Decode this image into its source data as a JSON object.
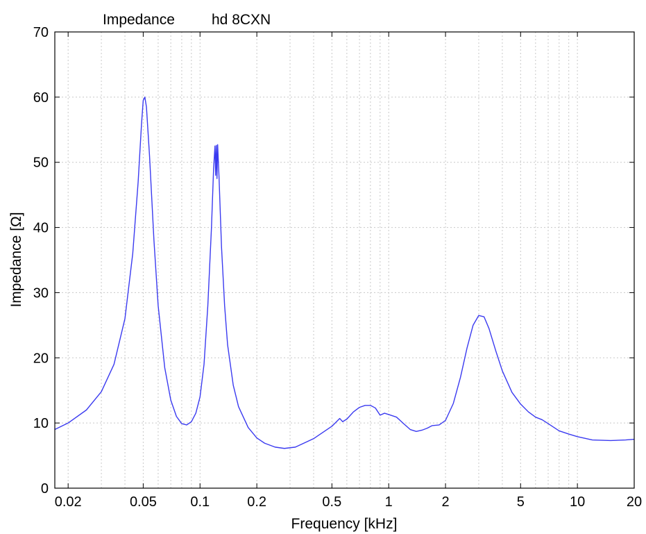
{
  "chart_data": {
    "type": "line",
    "title_left": "Impedance",
    "title_right": "hd 8CXN",
    "xlabel": "Frequency [kHz]",
    "ylabel": "Impedance [Ω]",
    "x_scale": "log",
    "xlim": [
      0.017,
      20
    ],
    "ylim": [
      0,
      70
    ],
    "x_ticks": [
      0.02,
      0.05,
      0.1,
      0.2,
      0.5,
      1,
      2,
      5,
      10,
      20
    ],
    "x_tick_labels": [
      "0.02",
      "0.05",
      "0.1",
      "0.2",
      "0.5",
      "1",
      "2",
      "5",
      "10",
      "20"
    ],
    "y_ticks": [
      0,
      10,
      20,
      30,
      40,
      50,
      60,
      70
    ],
    "y_tick_labels": [
      "0",
      "10",
      "20",
      "30",
      "40",
      "50",
      "60",
      "70"
    ],
    "grid": true,
    "colors": {
      "series": "#3a3af0",
      "grid": "#c8c8c8",
      "axis": "#000000"
    },
    "series": [
      {
        "points": [
          [
            0.017,
            9.0
          ],
          [
            0.02,
            10.0
          ],
          [
            0.025,
            12.0
          ],
          [
            0.03,
            14.8
          ],
          [
            0.035,
            19.0
          ],
          [
            0.04,
            26.0
          ],
          [
            0.044,
            36.0
          ],
          [
            0.047,
            47.0
          ],
          [
            0.049,
            56.0
          ],
          [
            0.05,
            59.5
          ],
          [
            0.051,
            60.0
          ],
          [
            0.052,
            58.5
          ],
          [
            0.054,
            51.0
          ],
          [
            0.057,
            38.0
          ],
          [
            0.06,
            28.0
          ],
          [
            0.065,
            18.5
          ],
          [
            0.07,
            13.5
          ],
          [
            0.075,
            11.0
          ],
          [
            0.08,
            9.9
          ],
          [
            0.085,
            9.7
          ],
          [
            0.09,
            10.2
          ],
          [
            0.095,
            11.5
          ],
          [
            0.1,
            14.0
          ],
          [
            0.105,
            19.0
          ],
          [
            0.11,
            28.0
          ],
          [
            0.115,
            40.0
          ],
          [
            0.118,
            49.0
          ],
          [
            0.12,
            52.5
          ],
          [
            0.121,
            48.0
          ],
          [
            0.122,
            52.6
          ],
          [
            0.123,
            47.5
          ],
          [
            0.124,
            52.7
          ],
          [
            0.126,
            48.0
          ],
          [
            0.13,
            37.0
          ],
          [
            0.135,
            28.0
          ],
          [
            0.14,
            22.0
          ],
          [
            0.15,
            15.8
          ],
          [
            0.16,
            12.5
          ],
          [
            0.18,
            9.3
          ],
          [
            0.2,
            7.7
          ],
          [
            0.22,
            6.9
          ],
          [
            0.25,
            6.3
          ],
          [
            0.28,
            6.1
          ],
          [
            0.32,
            6.3
          ],
          [
            0.4,
            7.6
          ],
          [
            0.5,
            9.5
          ],
          [
            0.55,
            10.7
          ],
          [
            0.57,
            10.2
          ],
          [
            0.6,
            10.6
          ],
          [
            0.65,
            11.7
          ],
          [
            0.7,
            12.4
          ],
          [
            0.75,
            12.7
          ],
          [
            0.8,
            12.7
          ],
          [
            0.85,
            12.3
          ],
          [
            0.9,
            11.2
          ],
          [
            0.95,
            11.5
          ],
          [
            1.0,
            11.3
          ],
          [
            1.1,
            10.9
          ],
          [
            1.2,
            9.9
          ],
          [
            1.3,
            9.0
          ],
          [
            1.4,
            8.7
          ],
          [
            1.5,
            8.9
          ],
          [
            1.6,
            9.2
          ],
          [
            1.7,
            9.6
          ],
          [
            1.85,
            9.7
          ],
          [
            2.0,
            10.4
          ],
          [
            2.2,
            13.0
          ],
          [
            2.4,
            17.0
          ],
          [
            2.6,
            21.5
          ],
          [
            2.8,
            25.0
          ],
          [
            3.0,
            26.5
          ],
          [
            3.2,
            26.3
          ],
          [
            3.4,
            24.5
          ],
          [
            3.7,
            21.0
          ],
          [
            4.0,
            18.0
          ],
          [
            4.5,
            14.7
          ],
          [
            5.0,
            12.9
          ],
          [
            5.5,
            11.7
          ],
          [
            6.0,
            10.9
          ],
          [
            6.5,
            10.5
          ],
          [
            7.0,
            9.9
          ],
          [
            8.0,
            8.8
          ],
          [
            9.0,
            8.3
          ],
          [
            10.0,
            7.9
          ],
          [
            12.0,
            7.4
          ],
          [
            15.0,
            7.3
          ],
          [
            18.0,
            7.4
          ],
          [
            20.0,
            7.5
          ]
        ]
      }
    ]
  }
}
